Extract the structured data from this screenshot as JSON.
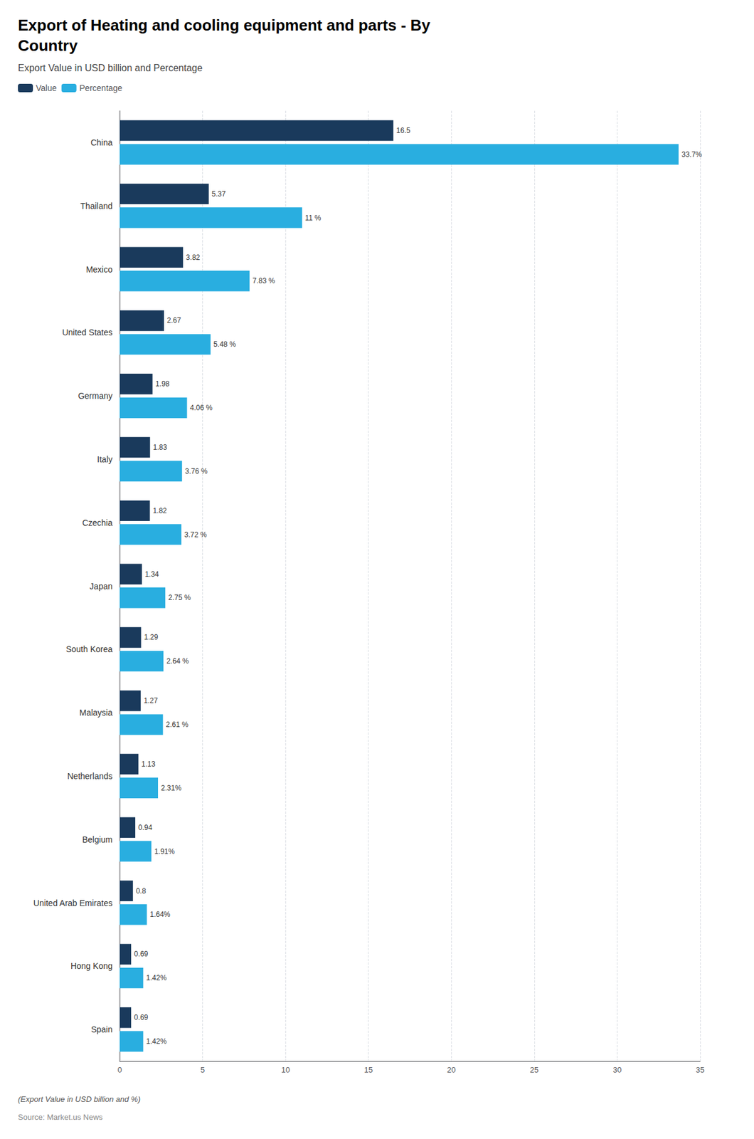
{
  "chart_data": {
    "type": "bar",
    "orientation": "horizontal",
    "title": "Export of Heating and cooling equipment and parts - By\nCountry",
    "subtitle": "Export Value in USD billion and Percentage",
    "footnote": "(Export Value in USD billion and %)",
    "source": "Source: Market.us News",
    "categories": [
      "China",
      "Thailand",
      "Mexico",
      "United States",
      "Germany",
      "Italy",
      "Czechia",
      "Japan",
      "South Korea",
      "Malaysia",
      "Netherlands",
      "Belgium",
      "United Arab Emirates",
      "Hong Kong",
      "Spain"
    ],
    "series": [
      {
        "name": "Value",
        "color": "#1a3a5c",
        "values": [
          16.5,
          5.37,
          3.82,
          2.67,
          1.98,
          1.83,
          1.82,
          1.34,
          1.29,
          1.27,
          1.13,
          0.94,
          0.8,
          0.69,
          0.69
        ]
      },
      {
        "name": "Percentage",
        "color": "#29aee0",
        "values": [
          33.7,
          11.0,
          7.83,
          5.48,
          4.06,
          3.76,
          3.72,
          2.75,
          2.64,
          2.61,
          2.31,
          1.91,
          1.64,
          1.42,
          1.42
        ],
        "value_labels": [
          "33.7%",
          "11 %",
          "7.83 %",
          "5.48 %",
          "4.06 %",
          "3.76 %",
          "3.72 %",
          "2.75 %",
          "2.64 %",
          "2.61 %",
          "2.31%",
          "1.91%",
          "1.64%",
          "1.42%",
          "1.42%"
        ]
      }
    ],
    "xlim": [
      0,
      35
    ],
    "xticks": [
      0,
      5,
      10,
      15,
      20,
      25,
      30,
      35
    ],
    "grid": true,
    "legend": "top-left",
    "data_labels": true
  }
}
